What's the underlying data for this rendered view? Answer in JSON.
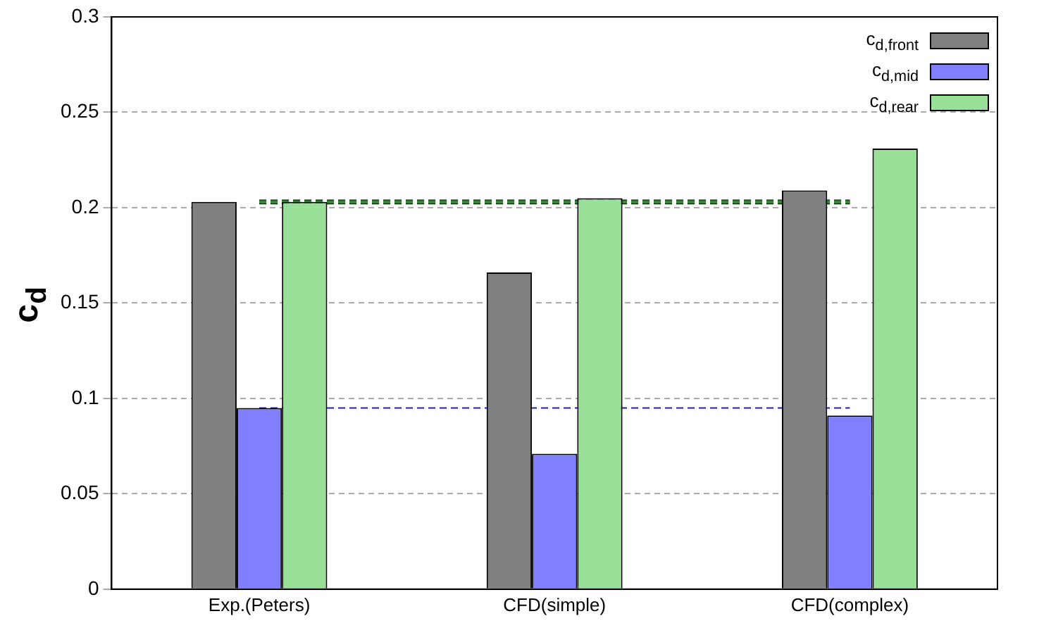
{
  "chart_data": {
    "type": "bar",
    "ylabel": "c$_{d}$",
    "categories": [
      "Exp.(Peters)",
      "CFD(simple)",
      "CFD(complex)"
    ],
    "series": [
      {
        "name": "c$_{d,front}$",
        "color": "#808080",
        "values": [
          0.203,
          0.166,
          0.209
        ]
      },
      {
        "name": "c$_{d,mid}$",
        "color": "#8080ff",
        "values": [
          0.095,
          0.071,
          0.091
        ]
      },
      {
        "name": "c$_{d,rear}$",
        "color": "#98e098",
        "values": [
          0.203,
          0.205,
          0.231
        ]
      },
      {
        "type": "line",
        "color": "#000000",
        "line_style": "dashed",
        "values": [
          0.203,
          0.203,
          0.203
        ]
      },
      {
        "type": "line",
        "color": "#2e8b2e",
        "line_style": "dashed",
        "values": [
          0.203,
          0.203,
          0.203
        ]
      },
      {
        "type": "line",
        "color": "#1f1fbf",
        "line_style": "dashed",
        "values": [
          0.095,
          0.095,
          0.095
        ]
      }
    ],
    "ylim": [
      0,
      0.3
    ],
    "yticks": [
      0,
      0.05,
      0.1,
      0.15,
      0.2,
      0.25,
      0.3
    ],
    "grid": "y",
    "legend": "top right",
    "marker": "none"
  }
}
